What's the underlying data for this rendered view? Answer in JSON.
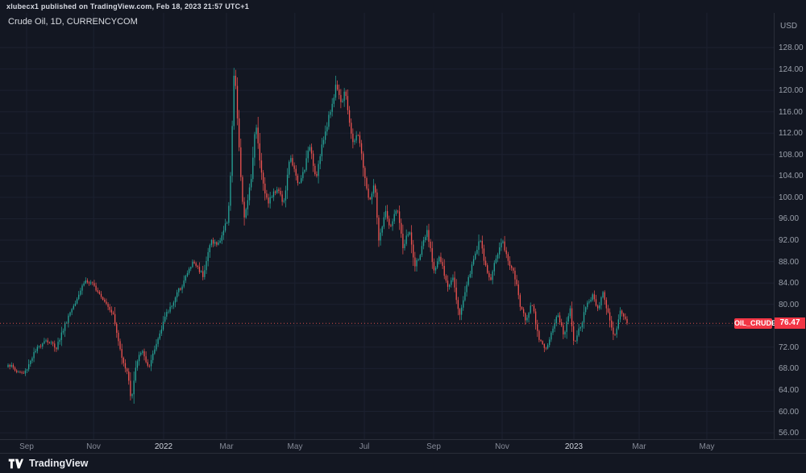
{
  "header": {
    "publish_line": "xlubecx1 published on TradingView.com, Feb 18, 2023 21:57 UTC+1"
  },
  "legend": {
    "title": "Crude Oil, 1D, CURRENCYCOM"
  },
  "price_scale": {
    "currency_label": "USD",
    "tick_labels": [
      "128.00",
      "124.00",
      "120.00",
      "116.00",
      "112.00",
      "108.00",
      "104.00",
      "100.00",
      "96.00",
      "92.00",
      "88.00",
      "84.00",
      "80.00",
      "76.00",
      "72.00",
      "68.00",
      "64.00",
      "60.00",
      "56.00"
    ],
    "tick_prices": [
      128,
      124,
      120,
      116,
      112,
      108,
      104,
      100,
      96,
      92,
      88,
      84,
      80,
      76,
      72,
      68,
      64,
      60,
      56
    ]
  },
  "time_scale": {
    "labels": [
      {
        "text": "Sep",
        "pos": 0.0344,
        "major": false
      },
      {
        "text": "Nov",
        "pos": 0.121,
        "major": false
      },
      {
        "text": "2022",
        "pos": 0.2115,
        "major": true
      },
      {
        "text": "Mar",
        "pos": 0.2927,
        "major": false
      },
      {
        "text": "May",
        "pos": 0.381,
        "major": false
      },
      {
        "text": "Jul",
        "pos": 0.4708,
        "major": false
      },
      {
        "text": "Sep",
        "pos": 0.5604,
        "major": false
      },
      {
        "text": "Nov",
        "pos": 0.649,
        "major": false
      },
      {
        "text": "2023",
        "pos": 0.7417,
        "major": true
      },
      {
        "text": "Mar",
        "pos": 0.826,
        "major": false
      },
      {
        "text": "May",
        "pos": 0.9135,
        "major": false
      }
    ]
  },
  "price_line": {
    "symbol_badge": "OIL_CRUDE",
    "price_badge": "76.47",
    "color": "#ef5350"
  },
  "footer": {
    "brand": "TradingView"
  },
  "colors": {
    "background": "#131722",
    "grid": "#1c2130",
    "axis_text": "#9aa0ab",
    "badge_red": "#f23645"
  },
  "chart_data": {
    "type": "candlestick",
    "symbol": "Crude Oil",
    "interval": "1D",
    "exchange": "CURRENCYCOM",
    "currency": "USD",
    "last_price": 76.47,
    "title": "Crude Oil, 1D, CURRENCYCOM",
    "y_axis": {
      "tick_min": 56,
      "tick_max": 128,
      "tick_step": 4,
      "visible_range": [
        54.8,
        134.5
      ]
    },
    "x_axis_labels": [
      "Sep",
      "Nov",
      "2022",
      "Mar",
      "May",
      "Jul",
      "Sep",
      "Nov",
      "2023",
      "Mar",
      "May"
    ],
    "date_range": "Sep 2021 - Feb 18 2023",
    "candle_count": 360,
    "colors": {
      "up": "#26a69a",
      "down": "#ef5350"
    },
    "price_path_anchors": [
      [
        0.0,
        69.0
      ],
      [
        0.013,
        67.5
      ],
      [
        0.026,
        67.0
      ],
      [
        0.04,
        70.5
      ],
      [
        0.059,
        73.5
      ],
      [
        0.078,
        72.0
      ],
      [
        0.098,
        78.0
      ],
      [
        0.124,
        84.5
      ],
      [
        0.143,
        83.0
      ],
      [
        0.169,
        78.5
      ],
      [
        0.18,
        72.0
      ],
      [
        0.195,
        66.0
      ],
      [
        0.199,
        61.8
      ],
      [
        0.206,
        68.0
      ],
      [
        0.215,
        71.5
      ],
      [
        0.228,
        68.0
      ],
      [
        0.251,
        77.0
      ],
      [
        0.28,
        83.5
      ],
      [
        0.299,
        88.0
      ],
      [
        0.315,
        85.5
      ],
      [
        0.328,
        92.0
      ],
      [
        0.339,
        91.0
      ],
      [
        0.355,
        96.0
      ],
      [
        0.359,
        103.0
      ],
      [
        0.363,
        116.0
      ],
      [
        0.366,
        126.0
      ],
      [
        0.369,
        117.0
      ],
      [
        0.373,
        110.0
      ],
      [
        0.378,
        100.0
      ],
      [
        0.381,
        95.5
      ],
      [
        0.393,
        104.0
      ],
      [
        0.4,
        114.0
      ],
      [
        0.41,
        104.0
      ],
      [
        0.419,
        99.0
      ],
      [
        0.436,
        102.0
      ],
      [
        0.445,
        98.5
      ],
      [
        0.456,
        108.0
      ],
      [
        0.469,
        102.0
      ],
      [
        0.479,
        105.5
      ],
      [
        0.488,
        110.0
      ],
      [
        0.497,
        103.5
      ],
      [
        0.508,
        110.0
      ],
      [
        0.518,
        115.0
      ],
      [
        0.527,
        119.0
      ],
      [
        0.53,
        121.5
      ],
      [
        0.539,
        117.5
      ],
      [
        0.544,
        120.0
      ],
      [
        0.557,
        110.0
      ],
      [
        0.566,
        112.0
      ],
      [
        0.576,
        104.0
      ],
      [
        0.583,
        99.0
      ],
      [
        0.592,
        102.5
      ],
      [
        0.599,
        91.5
      ],
      [
        0.609,
        97.5
      ],
      [
        0.618,
        94.0
      ],
      [
        0.628,
        98.5
      ],
      [
        0.638,
        90.5
      ],
      [
        0.648,
        94.0
      ],
      [
        0.657,
        87.0
      ],
      [
        0.667,
        90.0
      ],
      [
        0.677,
        93.5
      ],
      [
        0.688,
        86.5
      ],
      [
        0.697,
        89.0
      ],
      [
        0.71,
        83.0
      ],
      [
        0.719,
        85.5
      ],
      [
        0.729,
        77.5
      ],
      [
        0.74,
        83.5
      ],
      [
        0.749,
        87.0
      ],
      [
        0.762,
        92.5
      ],
      [
        0.771,
        87.0
      ],
      [
        0.779,
        84.5
      ],
      [
        0.788,
        88.5
      ],
      [
        0.798,
        92.0
      ],
      [
        0.807,
        88.5
      ],
      [
        0.818,
        85.5
      ],
      [
        0.827,
        80.0
      ],
      [
        0.836,
        77.0
      ],
      [
        0.846,
        80.5
      ],
      [
        0.857,
        74.0
      ],
      [
        0.87,
        71.2
      ],
      [
        0.879,
        75.0
      ],
      [
        0.888,
        78.5
      ],
      [
        0.898,
        74.0
      ],
      [
        0.908,
        79.5
      ],
      [
        0.914,
        73.0
      ],
      [
        0.924,
        75.5
      ],
      [
        0.935,
        80.0
      ],
      [
        0.944,
        81.5
      ],
      [
        0.953,
        79.5
      ],
      [
        0.961,
        82.0
      ],
      [
        0.97,
        78.0
      ],
      [
        0.979,
        73.8
      ],
      [
        0.99,
        79.0
      ],
      [
        1.0,
        76.47
      ]
    ]
  }
}
